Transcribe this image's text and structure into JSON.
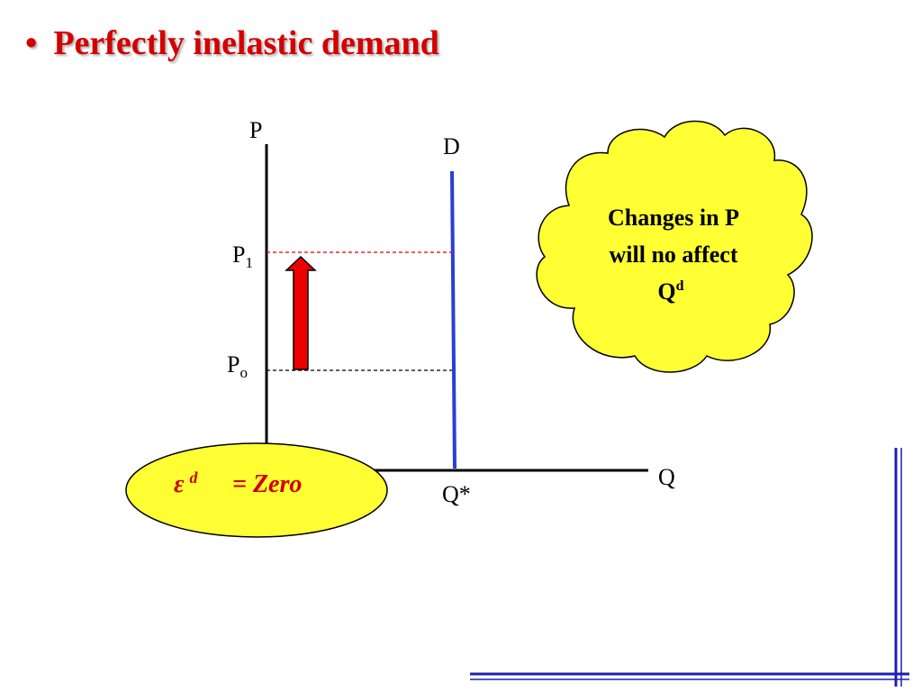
{
  "title": {
    "bullet": "•",
    "text": "Perfectly inelastic demand"
  },
  "graph": {
    "y_axis_label": "P",
    "x_axis_label": "Q",
    "demand_label": "D",
    "price_high": {
      "base": "P",
      "sub": "1"
    },
    "price_low": {
      "base": "P",
      "sub": "o"
    },
    "quantity_label": "Q*"
  },
  "cloud": {
    "line1": "Changes in P",
    "line2": "will no affect",
    "line3_base": "Q",
    "line3_sup": "d"
  },
  "elasticity": {
    "symbol": "ε",
    "sup": "d",
    "value": "= Zero"
  },
  "colors": {
    "title": "#d40000",
    "demand_line": "#2b3ed6",
    "arrow": "#ee0000",
    "bubble_fill": "#ffff33",
    "frame_lines": "#1f1fae"
  }
}
